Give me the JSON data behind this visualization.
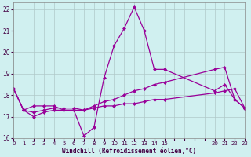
{
  "xlabel": "Windchill (Refroidissement éolien,°C)",
  "bg_color": "#d0f0f0",
  "line_color": "#990099",
  "grid_color": "#b0c8c8",
  "series1_x": [
    0,
    1,
    2,
    3,
    4,
    5,
    6,
    7,
    8,
    9,
    10,
    11,
    12,
    13,
    14,
    15,
    20,
    21,
    22,
    23
  ],
  "series1_y": [
    18.3,
    17.3,
    17.5,
    17.5,
    17.5,
    17.3,
    17.3,
    16.1,
    16.5,
    18.8,
    20.3,
    21.1,
    22.1,
    21.0,
    19.2,
    19.2,
    18.2,
    18.5,
    17.8,
    17.4
  ],
  "series2_x": [
    0,
    1,
    2,
    3,
    4,
    5,
    6,
    7,
    8,
    9,
    10,
    11,
    12,
    13,
    14,
    15,
    20,
    21,
    22,
    23
  ],
  "series2_y": [
    18.3,
    17.3,
    17.0,
    17.2,
    17.3,
    17.3,
    17.3,
    17.3,
    17.4,
    17.5,
    17.5,
    17.6,
    17.6,
    17.7,
    17.8,
    17.8,
    18.1,
    18.2,
    18.3,
    17.4
  ],
  "series3_x": [
    0,
    1,
    2,
    3,
    4,
    5,
    6,
    7,
    8,
    9,
    10,
    11,
    12,
    13,
    14,
    15,
    20,
    21,
    22,
    23
  ],
  "series3_y": [
    18.3,
    17.3,
    17.2,
    17.3,
    17.4,
    17.4,
    17.4,
    17.3,
    17.5,
    17.7,
    17.8,
    18.0,
    18.2,
    18.3,
    18.5,
    18.6,
    19.2,
    19.3,
    17.8,
    17.4
  ],
  "xlim": [
    0,
    23
  ],
  "ylim": [
    16.0,
    22.3
  ],
  "yticks": [
    16,
    17,
    18,
    19,
    20,
    21,
    22
  ],
  "xticks_all": [
    0,
    1,
    2,
    3,
    4,
    5,
    6,
    7,
    8,
    9,
    10,
    11,
    12,
    13,
    14,
    15,
    16,
    17,
    18,
    19,
    20,
    21,
    22,
    23
  ],
  "xtick_labels_show": [
    0,
    1,
    2,
    3,
    4,
    5,
    6,
    7,
    8,
    9,
    10,
    11,
    12,
    13,
    14,
    15,
    20,
    21,
    22,
    23
  ]
}
